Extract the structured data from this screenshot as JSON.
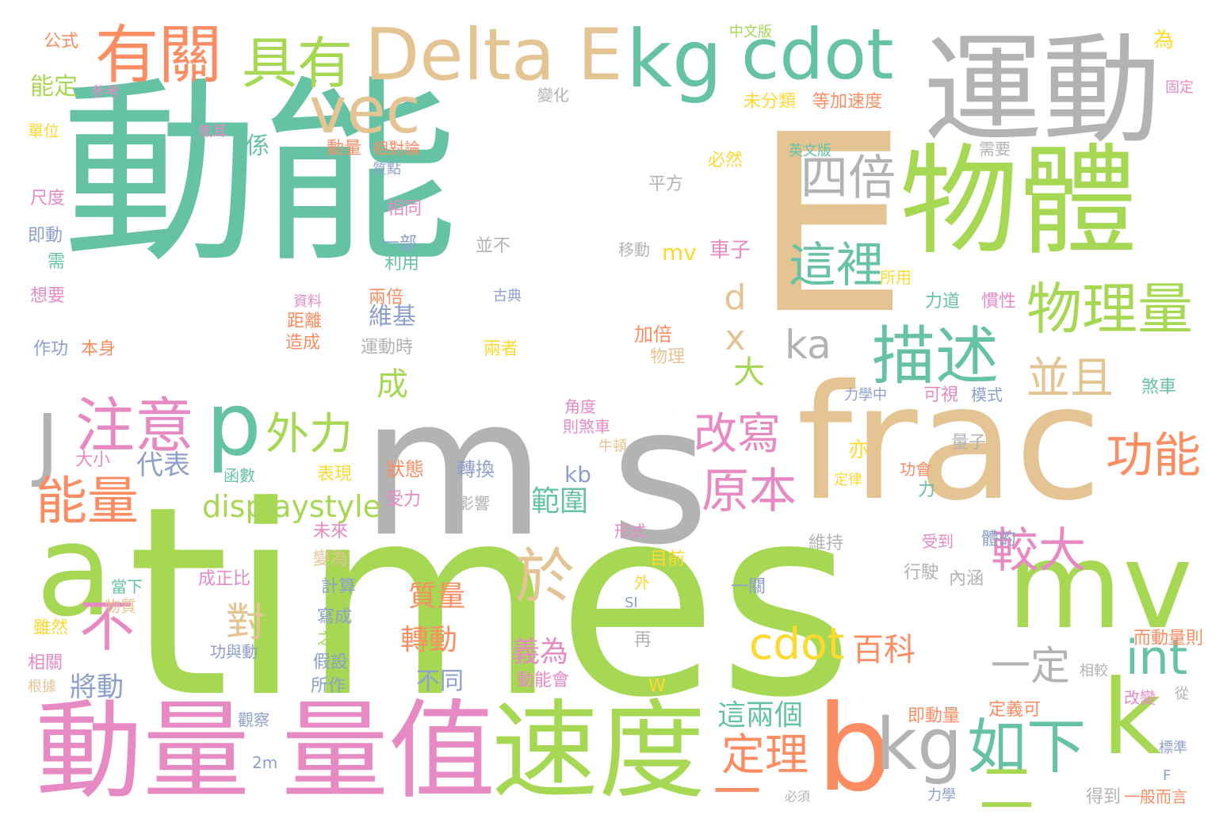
{
  "palette": {
    "teal": "#66c2a5",
    "green": "#a6d854",
    "gray": "#b3b3b3",
    "tan": "#e5c494",
    "pink": "#e78ac3",
    "orange": "#fc8d62",
    "yellow": "#ffd92f",
    "blue": "#8da0cb"
  },
  "words": [
    {
      "text": "動能",
      "color": "teal"
    },
    {
      "text": "times",
      "color": "green"
    },
    {
      "text": "E",
      "color": "tan"
    },
    {
      "text": "m",
      "color": "gray"
    },
    {
      "text": "s",
      "color": "gray"
    },
    {
      "text": "frac",
      "color": "tan"
    },
    {
      "text": "運動",
      "color": "gray"
    },
    {
      "text": "物體",
      "color": "green"
    },
    {
      "text": "mv",
      "color": "green"
    },
    {
      "text": "a",
      "color": "green"
    },
    {
      "text": "k",
      "color": "green"
    },
    {
      "text": "b",
      "color": "orange"
    },
    {
      "text": "動量",
      "color": "pink"
    },
    {
      "text": "量值",
      "color": "pink"
    },
    {
      "text": "速度",
      "color": "green"
    },
    {
      "text": "Delta E",
      "color": "tan"
    },
    {
      "text": "kg",
      "color": "teal"
    },
    {
      "text": "cdot",
      "color": "teal"
    },
    {
      "text": "有關",
      "color": "orange"
    },
    {
      "text": "具有",
      "color": "green"
    },
    {
      "text": "vec",
      "color": "tan"
    },
    {
      "text": "p",
      "color": "teal"
    },
    {
      "text": "注意",
      "color": "pink"
    },
    {
      "text": "J",
      "color": "gray"
    },
    {
      "text": "能量",
      "color": "orange"
    },
    {
      "text": "描述",
      "color": "teal"
    },
    {
      "text": "四倍",
      "color": "gray"
    },
    {
      "text": "這裡",
      "color": "teal"
    },
    {
      "text": "物理量",
      "color": "green"
    },
    {
      "text": "於",
      "color": "tan"
    },
    {
      "text": "不",
      "color": "pink"
    },
    {
      "text": "如下",
      "color": "teal"
    },
    {
      "text": "kg",
      "color": "gray"
    },
    {
      "text": "一",
      "color": "orange"
    },
    {
      "text": "二",
      "color": "green"
    },
    {
      "text": "功能",
      "color": "orange"
    },
    {
      "text": "較大",
      "color": "pink"
    },
    {
      "text": "並且",
      "color": "tan"
    },
    {
      "text": "原本",
      "color": "pink"
    },
    {
      "text": "改寫",
      "color": "pink"
    },
    {
      "text": "外力",
      "color": "green"
    },
    {
      "text": "cdot",
      "color": "yellow"
    },
    {
      "text": "int",
      "color": "teal"
    },
    {
      "text": "一定",
      "color": "gray"
    },
    {
      "text": "定理",
      "color": "orange"
    },
    {
      "text": "對",
      "color": "tan"
    },
    {
      "text": "displaystyle",
      "color": "green"
    },
    {
      "text": "ka",
      "color": "gray"
    },
    {
      "text": "dx",
      "color": "tan"
    },
    {
      "text": "大",
      "color": "green"
    },
    {
      "text": "成",
      "color": "green"
    },
    {
      "text": "百科",
      "color": "orange"
    },
    {
      "text": "這兩個",
      "color": "teal"
    },
    {
      "text": "義為",
      "color": "pink"
    },
    {
      "text": "轉動",
      "color": "orange"
    },
    {
      "text": "質量",
      "color": "orange"
    },
    {
      "text": "範圍",
      "color": "teal"
    },
    {
      "text": "將動",
      "color": "blue"
    },
    {
      "text": "代表",
      "color": "blue"
    },
    {
      "text": "kb",
      "color": "blue"
    },
    {
      "text": "維基",
      "color": "blue"
    },
    {
      "text": "mv",
      "color": "yellow"
    },
    {
      "text": "車子",
      "color": "pink"
    },
    {
      "text": "不同",
      "color": "blue"
    },
    {
      "text": "係",
      "color": "teal"
    },
    {
      "text": "能定",
      "color": "green"
    },
    {
      "text": "公式",
      "color": "orange"
    },
    {
      "text": "參考",
      "color": "pink"
    },
    {
      "text": "單位",
      "color": "yellow"
    },
    {
      "text": "焦耳",
      "color": "pink"
    },
    {
      "text": "尺度",
      "color": "pink"
    },
    {
      "text": "即動",
      "color": "blue"
    },
    {
      "text": "需",
      "color": "teal"
    },
    {
      "text": "想要",
      "color": "pink"
    },
    {
      "text": "作功",
      "color": "blue"
    },
    {
      "text": "本身",
      "color": "orange"
    },
    {
      "text": "大小",
      "color": "pink"
    },
    {
      "text": "函數",
      "color": "teal"
    },
    {
      "text": "表現",
      "color": "yellow"
    },
    {
      "text": "狀態",
      "color": "orange"
    },
    {
      "text": "轉換",
      "color": "blue"
    },
    {
      "text": "受力",
      "color": "pink"
    },
    {
      "text": "影響",
      "color": "gray"
    },
    {
      "text": "未來",
      "color": "pink"
    },
    {
      "text": "成正比",
      "color": "pink"
    },
    {
      "text": "變為",
      "color": "tan"
    },
    {
      "text": "計算",
      "color": "blue"
    },
    {
      "text": "當下",
      "color": "teal"
    },
    {
      "text": "物質",
      "color": "tan"
    },
    {
      "text": "雖然",
      "color": "yellow"
    },
    {
      "text": "相關",
      "color": "pink"
    },
    {
      "text": "根據",
      "color": "tan"
    },
    {
      "text": "功與動",
      "color": "blue"
    },
    {
      "text": "假設",
      "color": "blue"
    },
    {
      "text": "之間",
      "color": "green"
    },
    {
      "text": "寫成",
      "color": "blue"
    },
    {
      "text": "所作",
      "color": "blue"
    },
    {
      "text": "觀察",
      "color": "blue"
    },
    {
      "text": "2m",
      "color": "blue"
    },
    {
      "text": "中文版",
      "color": "green"
    },
    {
      "text": "變化",
      "color": "gray"
    },
    {
      "text": "動量",
      "color": "orange"
    },
    {
      "text": "相對論",
      "color": "orange"
    },
    {
      "text": "質點",
      "color": "blue"
    },
    {
      "text": "相同",
      "color": "pink"
    },
    {
      "text": "一部",
      "color": "blue"
    },
    {
      "text": "利用",
      "color": "teal"
    },
    {
      "text": "兩倍",
      "color": "orange"
    },
    {
      "text": "距離",
      "color": "orange"
    },
    {
      "text": "造成",
      "color": "orange"
    },
    {
      "text": "運動時",
      "color": "gray"
    },
    {
      "text": "資料",
      "color": "pink"
    },
    {
      "text": "未分類",
      "color": "yellow"
    },
    {
      "text": "等加速度",
      "color": "orange"
    },
    {
      "text": "英文版",
      "color": "teal"
    },
    {
      "text": "必然",
      "color": "yellow"
    },
    {
      "text": "平方",
      "color": "gray"
    },
    {
      "text": "並不",
      "color": "gray"
    },
    {
      "text": "移動",
      "color": "gray"
    },
    {
      "text": "古典",
      "color": "blue"
    },
    {
      "text": "所用",
      "color": "yellow"
    },
    {
      "text": "力道",
      "color": "teal"
    },
    {
      "text": "加倍",
      "color": "orange"
    },
    {
      "text": "物理",
      "color": "tan"
    },
    {
      "text": "兩者",
      "color": "yellow"
    },
    {
      "text": "慣性",
      "color": "pink"
    },
    {
      "text": "角度",
      "color": "pink"
    },
    {
      "text": "則煞車",
      "color": "pink"
    },
    {
      "text": "牛頓",
      "color": "tan"
    },
    {
      "text": "力學中",
      "color": "blue"
    },
    {
      "text": "可視",
      "color": "pink"
    },
    {
      "text": "模式",
      "color": "blue"
    },
    {
      "text": "煞車",
      "color": "teal"
    },
    {
      "text": "亦",
      "color": "yellow"
    },
    {
      "text": "定律",
      "color": "yellow"
    },
    {
      "text": "功會",
      "color": "orange"
    },
    {
      "text": "力",
      "color": "teal"
    },
    {
      "text": "量子",
      "color": "gray"
    },
    {
      "text": "形式",
      "color": "pink"
    },
    {
      "text": "目前",
      "color": "yellow"
    },
    {
      "text": "外",
      "color": "yellow"
    },
    {
      "text": "SI",
      "color": "blue"
    },
    {
      "text": "維持",
      "color": "gray"
    },
    {
      "text": "受到",
      "color": "pink"
    },
    {
      "text": "體的",
      "color": "blue"
    },
    {
      "text": "行駛",
      "color": "gray"
    },
    {
      "text": "內涵",
      "color": "gray"
    },
    {
      "text": "一關",
      "color": "blue"
    },
    {
      "text": "再",
      "color": "gray"
    },
    {
      "text": "而動量則",
      "color": "orange"
    },
    {
      "text": "相較",
      "color": "gray"
    },
    {
      "text": "動能會",
      "color": "pink"
    },
    {
      "text": "W",
      "color": "yellow"
    },
    {
      "text": "即動量",
      "color": "orange"
    },
    {
      "text": "定義可",
      "color": "orange"
    },
    {
      "text": "改變",
      "color": "pink"
    },
    {
      "text": "從",
      "color": "gray"
    },
    {
      "text": "標準",
      "color": "blue"
    },
    {
      "text": "F",
      "color": "blue"
    },
    {
      "text": "力學",
      "color": "blue"
    },
    {
      "text": "必須",
      "color": "gray"
    },
    {
      "text": "得到",
      "color": "gray"
    },
    {
      "text": "一般而言",
      "color": "orange"
    },
    {
      "text": "需要",
      "color": "gray"
    },
    {
      "text": "為",
      "color": "yellow"
    },
    {
      "text": "固定",
      "color": "pink"
    }
  ]
}
